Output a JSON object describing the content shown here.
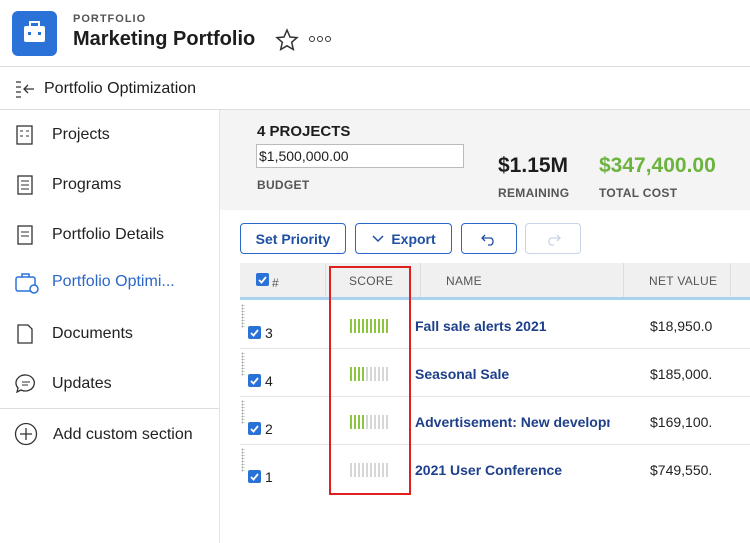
{
  "header": {
    "label": "PORTFOLIO",
    "title": "Marketing Portfolio"
  },
  "breadcrumb": "Portfolio Optimization",
  "nav": [
    "Projects",
    "Programs",
    "Portfolio Details",
    "Portfolio Optimi...",
    "Documents",
    "Updates",
    "Add custom section"
  ],
  "summary": {
    "count": "4 PROJECTS",
    "budget_input": "$1,500,000.00",
    "budget_label": "BUDGET",
    "remaining": "$1.15M",
    "remaining_label": "REMAINING",
    "total_cost": "$347,400.00",
    "total_cost_label": "TOTAL COST"
  },
  "buttons": [
    "Set Priority",
    "Export"
  ],
  "table": {
    "columns": [
      "#",
      "SCORE",
      "NAME",
      "NET VALUE"
    ],
    "rows": [
      {
        "rank": "3",
        "score": 10,
        "name": "Fall sale alerts 2021",
        "net_value": "$18,950.0"
      },
      {
        "rank": "4",
        "score": 4,
        "name": "Seasonal Sale",
        "net_value": "$185,000."
      },
      {
        "rank": "2",
        "score": 4,
        "name": "Advertisement: New developm",
        "net_value": "$169,100."
      },
      {
        "rank": "1",
        "score": 0,
        "name": "2021 User Conference",
        "net_value": "$749,550."
      }
    ],
    "score_max": 10
  }
}
